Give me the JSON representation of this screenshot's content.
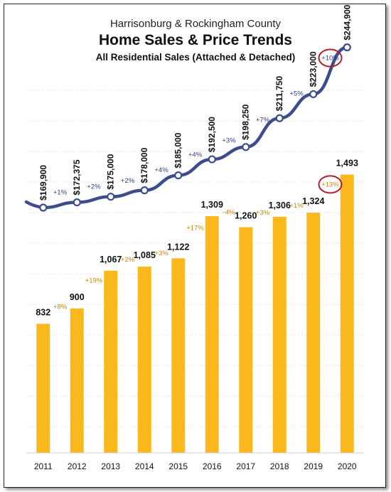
{
  "header": {
    "line1": "Harrisonburg & Rockingham County",
    "title": "Home Sales & Price Trends",
    "subtitle": "All Residential Sales (Attached & Detached)"
  },
  "chart_data": {
    "type": "bar+line",
    "title": "Home Sales & Price Trends",
    "subtitle": "All Residential Sales (Attached & Detached)",
    "categories": [
      "2011",
      "2012",
      "2013",
      "2014",
      "2015",
      "2016",
      "2017",
      "2018",
      "2019",
      "2020"
    ],
    "series": [
      {
        "type": "bar",
        "values": [
          832,
          900,
          1067,
          1085,
          1122,
          1309,
          1260,
          1306,
          1324,
          1493
        ],
        "labels": [
          "832",
          "900",
          "1,067",
          "1,085",
          "1,122",
          "1,309",
          "1,260",
          "1,306",
          "1,324",
          "1,493"
        ],
        "changes": [
          "+8%",
          "+19%",
          "+2%",
          "+3%",
          "+17%",
          "-4%",
          "+3%",
          "+1%",
          "+13%"
        ],
        "color": "#fbb81c",
        "change_color": "#c8860a"
      },
      {
        "type": "line",
        "values": [
          169900,
          172375,
          175000,
          178000,
          185000,
          192500,
          198250,
          211750,
          223000,
          244900
        ],
        "labels": [
          "$169,900",
          "$172,375",
          "$175,000",
          "$178,000",
          "$185,000",
          "$192,500",
          "$198,250",
          "$211,750",
          "$223,000",
          "$244,900"
        ],
        "changes": [
          "+1%",
          "+2%",
          "+2%",
          "+4%",
          "+4%",
          "+3%",
          "+7%",
          "+5%",
          "+10%"
        ],
        "color": "#3d4d8c",
        "change_color": "#2f3f85"
      }
    ],
    "highlight": {
      "bar_change": "+13%",
      "price_change": "+10%",
      "circle_color": "#b51f2e"
    },
    "grid": true
  }
}
